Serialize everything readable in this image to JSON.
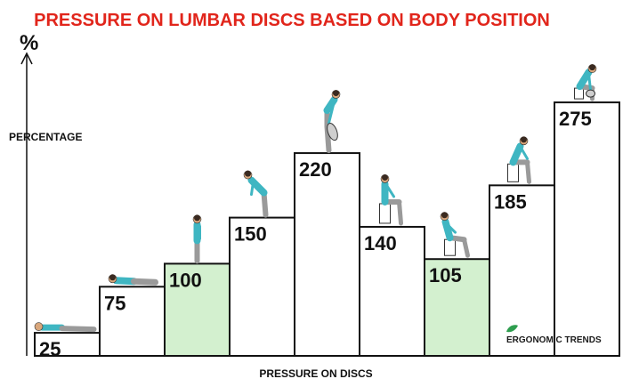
{
  "title": "PRESSURE ON LUMBAR DISCS BASED ON BODY POSITION",
  "brand": "ERGONOMIC TRENDS",
  "colors": {
    "title": "#e1251b",
    "highlight_fill": "#d3f0cf",
    "plain_fill": "#ffffff",
    "bar_stroke": "#111111",
    "figure_shirt": "#3fb6c2",
    "figure_pants": "#9a9a9a",
    "figure_skin": "#d9a77c"
  },
  "chart_data": {
    "type": "bar",
    "title": "PRESSURE ON LUMBAR DISCS BASED ON BODY POSITION",
    "xlabel": "PRESSURE ON DISCS",
    "ylabel": "PERCENTAGE",
    "yunit": "%",
    "ylim": [
      0,
      300
    ],
    "grid": false,
    "legend": "none",
    "values": [
      25,
      75,
      100,
      150,
      220,
      140,
      105,
      185,
      275
    ],
    "labels": [
      "25",
      "75",
      "100",
      "150",
      "220",
      "140",
      "105",
      "185",
      "275"
    ],
    "highlighted": [
      false,
      false,
      true,
      false,
      false,
      false,
      true,
      false,
      false
    ],
    "poses": [
      "lying",
      "side-lying",
      "standing",
      "leaning-forward",
      "lifting-forward",
      "sitting-upright",
      "sitting-reclined",
      "sitting-forward",
      "sitting-lifting"
    ]
  }
}
